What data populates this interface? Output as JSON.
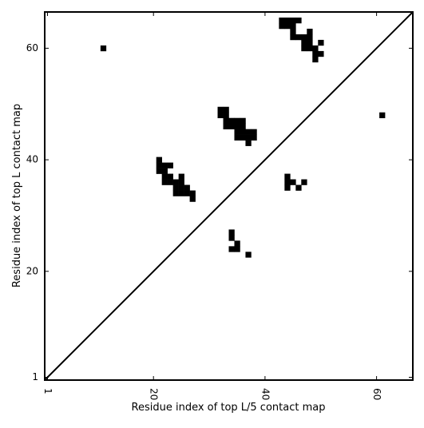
{
  "chart_data": {
    "type": "heatmap",
    "title": "",
    "xlabel": "Residue index of top L/5 contact map",
    "ylabel": "Residue index of top L contact map",
    "xlim": [
      0.5,
      66.5
    ],
    "ylim": [
      0.5,
      66.5
    ],
    "x_ticks": [
      1,
      20,
      40,
      60
    ],
    "y_ticks": [
      1,
      20,
      40,
      60
    ],
    "x_tick_labels": [
      "1",
      "20",
      "40",
      "60"
    ],
    "y_tick_labels": [
      "1",
      "20",
      "40",
      "60"
    ],
    "x_tick_rotation_deg": -90,
    "diagonal": true,
    "grid": false,
    "contact_color": "#000000",
    "background_color": "#ffffff",
    "contacts": [
      [
        11,
        60
      ],
      [
        43,
        65
      ],
      [
        44,
        65
      ],
      [
        45,
        65
      ],
      [
        46,
        65
      ],
      [
        43,
        64
      ],
      [
        44,
        64
      ],
      [
        45,
        64
      ],
      [
        45,
        63
      ],
      [
        48,
        63
      ],
      [
        45,
        62
      ],
      [
        46,
        62
      ],
      [
        47,
        62
      ],
      [
        48,
        62
      ],
      [
        47,
        61
      ],
      [
        48,
        61
      ],
      [
        50,
        61
      ],
      [
        47,
        60
      ],
      [
        48,
        60
      ],
      [
        49,
        60
      ],
      [
        49,
        59
      ],
      [
        50,
        59
      ],
      [
        49,
        58
      ],
      [
        61,
        48
      ],
      [
        32,
        49
      ],
      [
        33,
        49
      ],
      [
        32,
        48
      ],
      [
        33,
        48
      ],
      [
        33,
        47
      ],
      [
        34,
        47
      ],
      [
        35,
        47
      ],
      [
        36,
        47
      ],
      [
        33,
        46
      ],
      [
        34,
        46
      ],
      [
        35,
        46
      ],
      [
        36,
        46
      ],
      [
        35,
        45
      ],
      [
        36,
        45
      ],
      [
        37,
        45
      ],
      [
        38,
        45
      ],
      [
        35,
        44
      ],
      [
        36,
        44
      ],
      [
        37,
        44
      ],
      [
        38,
        44
      ],
      [
        37,
        43
      ],
      [
        21,
        40
      ],
      [
        21,
        39
      ],
      [
        22,
        39
      ],
      [
        23,
        39
      ],
      [
        21,
        38
      ],
      [
        22,
        38
      ],
      [
        22,
        37
      ],
      [
        23,
        37
      ],
      [
        25,
        37
      ],
      [
        22,
        36
      ],
      [
        23,
        36
      ],
      [
        24,
        36
      ],
      [
        25,
        36
      ],
      [
        24,
        35
      ],
      [
        25,
        35
      ],
      [
        26,
        35
      ],
      [
        24,
        34
      ],
      [
        25,
        34
      ],
      [
        26,
        34
      ],
      [
        27,
        34
      ],
      [
        27,
        33
      ],
      [
        44,
        37
      ],
      [
        44,
        36
      ],
      [
        45,
        36
      ],
      [
        47,
        36
      ],
      [
        44,
        35
      ],
      [
        46,
        35
      ],
      [
        34,
        27
      ],
      [
        34,
        26
      ],
      [
        35,
        25
      ],
      [
        34,
        24
      ],
      [
        35,
        24
      ],
      [
        37,
        23
      ]
    ]
  }
}
